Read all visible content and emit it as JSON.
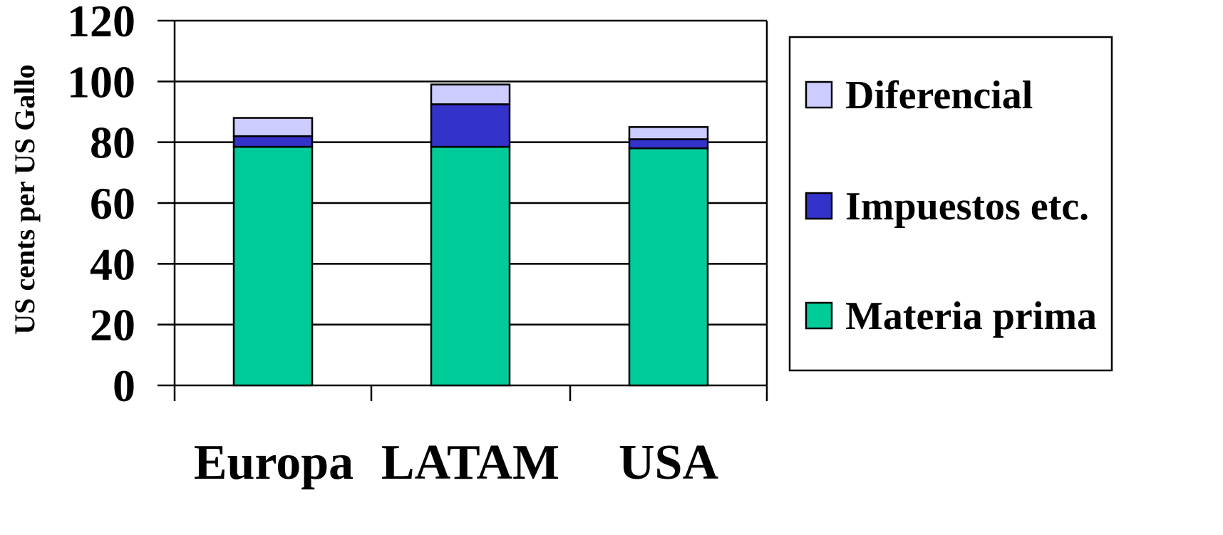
{
  "chart_data": {
    "type": "bar",
    "stacked": true,
    "categories": [
      "Europa",
      "LATAM",
      "USA"
    ],
    "series": [
      {
        "name": "Materia prima",
        "values": [
          78.5,
          78.5,
          78
        ],
        "color": "#00CC99"
      },
      {
        "name": "Impuestos etc.",
        "values": [
          3.5,
          14,
          3
        ],
        "color": "#3333CC"
      },
      {
        "name": "Diferencial",
        "values": [
          6,
          6.5,
          4
        ],
        "color": "#CCCCFF"
      }
    ],
    "title": "",
    "xlabel": "",
    "ylabel": "US cents per US Gallo",
    "ylim": [
      0,
      120
    ],
    "yticks": [
      0,
      20,
      40,
      60,
      80,
      100,
      120
    ],
    "grid": true,
    "legend_position": "right",
    "legend_order": [
      "Diferencial",
      "Impuestos etc.",
      "Materia prima"
    ]
  }
}
